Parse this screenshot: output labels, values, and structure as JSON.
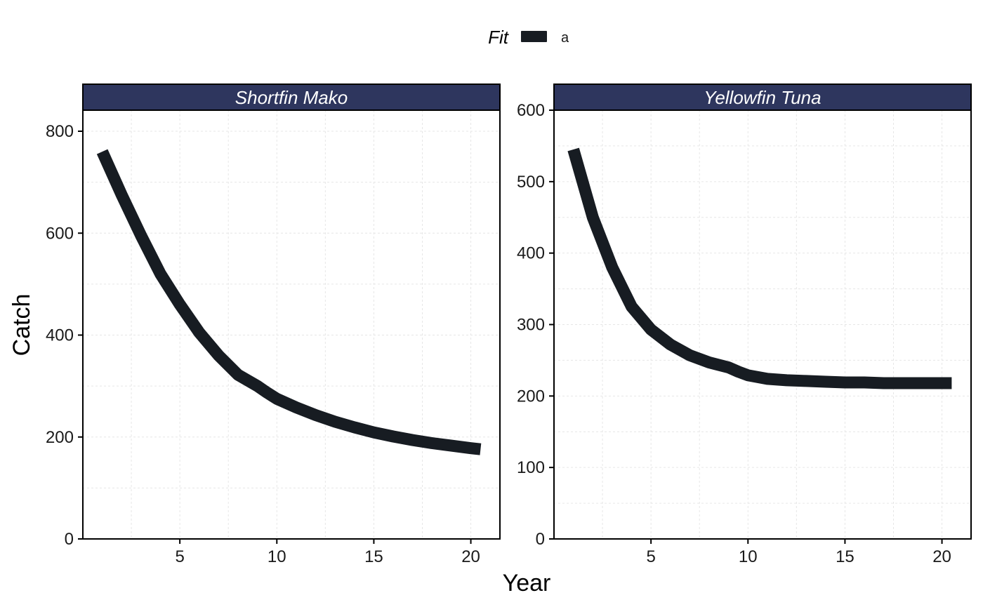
{
  "legend": {
    "title": "Fit",
    "label": "a",
    "color": "#171c22"
  },
  "axes": {
    "xlabel": "Year",
    "ylabel": "Catch"
  },
  "colors": {
    "strip_bg": "#2e365e",
    "line": "#171c22",
    "grid": "#e6e6e6",
    "border": "#000000"
  },
  "chart_data": [
    {
      "type": "line",
      "panel_title": "Shortfin Mako",
      "series": [
        {
          "name": "a",
          "x": [
            1,
            2,
            3,
            4,
            5,
            6,
            7,
            8,
            9,
            9.5,
            10,
            11,
            12,
            13,
            14,
            15,
            16,
            17,
            18,
            19,
            20,
            20.5
          ],
          "y": [
            760,
            675,
            595,
            520,
            460,
            405,
            360,
            322,
            300,
            287,
            275,
            258,
            243,
            230,
            219,
            209,
            201,
            194,
            188,
            183,
            178,
            176
          ]
        }
      ],
      "xlim": [
        0,
        21.5
      ],
      "ylim": [
        0,
        800
      ],
      "xticks": [
        5,
        10,
        15,
        20
      ],
      "yticks": [
        0,
        200,
        400,
        600,
        800
      ],
      "grid": true
    },
    {
      "type": "line",
      "panel_title": "Yellowfin Tuna",
      "series": [
        {
          "name": "a",
          "x": [
            1,
            2,
            3,
            4,
            5,
            6,
            7,
            8,
            9,
            9.5,
            10,
            11,
            12,
            13,
            14,
            15,
            16,
            17,
            18,
            19,
            20,
            20.5
          ],
          "y": [
            545,
            450,
            380,
            325,
            293,
            272,
            257,
            247,
            240,
            234,
            229,
            224,
            222,
            221,
            220,
            219,
            219,
            218,
            218,
            218,
            218,
            218
          ]
        }
      ],
      "xlim": [
        0,
        21.5
      ],
      "ylim": [
        0,
        600
      ],
      "xticks": [
        5,
        10,
        15,
        20
      ],
      "yticks": [
        0,
        100,
        200,
        300,
        400,
        500,
        600
      ],
      "grid": true
    }
  ]
}
